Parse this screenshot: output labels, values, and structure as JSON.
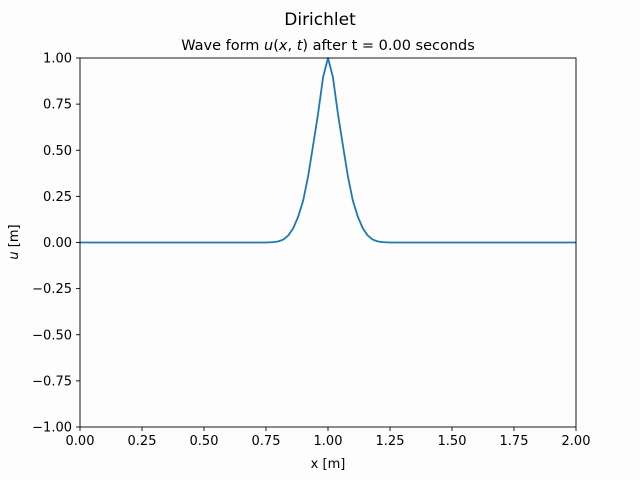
{
  "figure": {
    "suptitle": "Dirichlet"
  },
  "chart_data": {
    "type": "line",
    "title": "Wave form u(x, t) after t = 0.00 seconds",
    "title_parts": {
      "prefix": "Wave form ",
      "u": "u",
      "open_paren": "(",
      "x": "x",
      "comma": ", ",
      "t": "t",
      "close_paren": ")",
      "suffix": " after t = 0.00 seconds"
    },
    "xlabel": "x [m]",
    "ylabel_parts": {
      "u": "u",
      "unit": " [m]"
    },
    "xlim": [
      0,
      2
    ],
    "ylim": [
      -1,
      1
    ],
    "xticks": [
      0,
      0.25,
      0.5,
      0.75,
      1.0,
      1.25,
      1.5,
      1.75,
      2.0
    ],
    "xtick_labels": [
      "0.00",
      "0.25",
      "0.50",
      "0.75",
      "1.00",
      "1.25",
      "1.50",
      "1.75",
      "2.00"
    ],
    "yticks": [
      -1.0,
      -0.75,
      -0.5,
      -0.25,
      0.0,
      0.25,
      0.5,
      0.75,
      1.0
    ],
    "ytick_labels": [
      "−1.00",
      "−0.75",
      "−0.50",
      "−0.25",
      "0.00",
      "0.25",
      "0.50",
      "0.75",
      "1.00"
    ],
    "grid": false,
    "series": [
      {
        "color": "#1f77b4",
        "x": [
          0,
          0.1,
          0.2,
          0.3,
          0.4,
          0.5,
          0.6,
          0.65,
          0.7,
          0.75,
          0.78,
          0.8,
          0.82,
          0.84,
          0.86,
          0.88,
          0.9,
          0.92,
          0.94,
          0.96,
          0.98,
          1.0,
          1.02,
          1.04,
          1.06,
          1.08,
          1.1,
          1.12,
          1.14,
          1.16,
          1.18,
          1.2,
          1.22,
          1.25,
          1.3,
          1.35,
          1.4,
          1.5,
          1.6,
          1.7,
          1.8,
          1.9,
          2.0
        ],
        "y": [
          0,
          0,
          0,
          0,
          0,
          0,
          0,
          0,
          0,
          0,
          0.002,
          0.006,
          0.016,
          0.038,
          0.078,
          0.141,
          0.228,
          0.36,
          0.527,
          0.698,
          0.895,
          1.0,
          0.895,
          0.698,
          0.527,
          0.36,
          0.228,
          0.141,
          0.078,
          0.038,
          0.016,
          0.006,
          0.002,
          0,
          0,
          0,
          0,
          0,
          0,
          0,
          0,
          0,
          0
        ]
      }
    ]
  }
}
